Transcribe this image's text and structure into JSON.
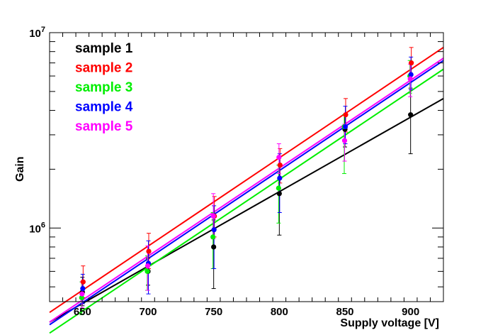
{
  "chart_data": {
    "type": "scatter",
    "title": "",
    "xlabel": "Supply voltage [V]",
    "ylabel": "Gain",
    "xlim": [
      625,
      925
    ],
    "ylim": [
      420000,
      10000000
    ],
    "y_scale": "log",
    "x_ticks": [
      650,
      700,
      750,
      800,
      850,
      900
    ],
    "y_ticks": [
      {
        "value": 1000000,
        "base": "10",
        "exp": "6"
      },
      {
        "value": 10000000,
        "base": "10",
        "exp": "7"
      }
    ],
    "legend_placement": "top-left",
    "grid": false,
    "series": [
      {
        "name": "sample 1",
        "color": "#000000",
        "x": [
          650,
          700,
          750,
          800,
          850,
          900
        ],
        "y": [
          470000,
          600000,
          800000,
          1500000,
          3200000,
          3800000
        ],
        "y_low": [
          400000,
          510000,
          490000,
          920000,
          2600000,
          2400000
        ],
        "y_high": [
          560000,
          700000,
          1100000,
          2100000,
          3800000,
          5200000
        ],
        "fit": [
          [
            625,
            330000
          ],
          [
            925,
            4600000
          ]
        ]
      },
      {
        "name": "sample 2",
        "color": "#ff0000",
        "x": [
          650,
          700,
          750,
          800,
          850,
          900
        ],
        "y": [
          530000,
          760000,
          1150000,
          2100000,
          3800000,
          7000000
        ],
        "y_low": [
          440000,
          620000,
          900000,
          1700000,
          3100000,
          5800000
        ],
        "y_high": [
          640000,
          940000,
          1450000,
          2550000,
          4600000,
          8400000
        ],
        "fit": [
          [
            625,
            370000
          ],
          [
            925,
            8400000
          ]
        ]
      },
      {
        "name": "sample 3",
        "color": "#00ee00",
        "x": [
          650,
          700,
          750,
          800,
          850,
          900
        ],
        "y": [
          440000,
          600000,
          900000,
          1600000,
          3300000,
          6000000
        ],
        "y_low": [
          360000,
          480000,
          620000,
          1060000,
          1900000,
          4900000
        ],
        "y_high": [
          530000,
          720000,
          1200000,
          2100000,
          3800000,
          7200000
        ],
        "fit": [
          [
            625,
            290000
          ],
          [
            925,
            6500000
          ]
        ]
      },
      {
        "name": "sample 4",
        "color": "#0000ff",
        "x": [
          650,
          700,
          750,
          800,
          850,
          900
        ],
        "y": [
          490000,
          660000,
          980000,
          1800000,
          3300000,
          6100000
        ],
        "y_low": [
          410000,
          460000,
          620000,
          1200000,
          2700000,
          5100000
        ],
        "y_high": [
          580000,
          860000,
          1300000,
          2400000,
          4200000,
          7500000
        ],
        "fit": [
          [
            625,
            320000
          ],
          [
            925,
            7200000
          ]
        ]
      },
      {
        "name": "sample 5",
        "color": "#ff00ff",
        "x": [
          650,
          700,
          750,
          800,
          850,
          900
        ],
        "y": [
          460000,
          640000,
          1150000,
          2300000,
          2800000,
          5800000
        ],
        "y_low": [
          390000,
          480000,
          880000,
          1900000,
          2200000,
          4700000
        ],
        "y_high": [
          530000,
          810000,
          1500000,
          2700000,
          3400000,
          6900000
        ],
        "fit": [
          [
            625,
            330000
          ],
          [
            925,
            7400000
          ]
        ]
      }
    ]
  }
}
